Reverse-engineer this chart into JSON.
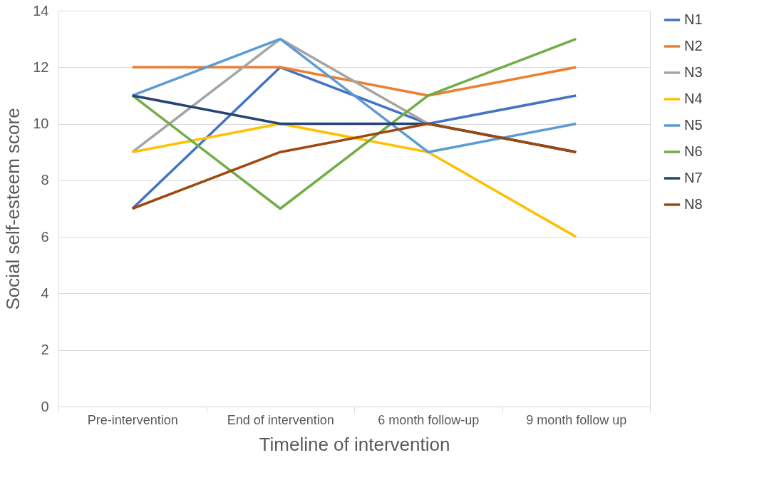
{
  "chart_data": {
    "type": "line",
    "xlabel": "Timeline of intervention",
    "ylabel": "Social self-esteem score",
    "categories": [
      "Pre-intervention",
      "End of intervention",
      "6 month follow-up",
      "9 month follow up"
    ],
    "series": [
      {
        "name": "N1",
        "color": "#4472c4",
        "values": [
          7,
          12,
          10,
          11
        ]
      },
      {
        "name": "N2",
        "color": "#ed7d31",
        "values": [
          12,
          12,
          11,
          12
        ]
      },
      {
        "name": "N3",
        "color": "#a5a5a5",
        "values": [
          9,
          13,
          10,
          9
        ]
      },
      {
        "name": "N4",
        "color": "#ffc000",
        "values": [
          9,
          10,
          9,
          6
        ]
      },
      {
        "name": "N5",
        "color": "#5b9bd5",
        "values": [
          11,
          13,
          9,
          10
        ]
      },
      {
        "name": "N6",
        "color": "#70ad47",
        "values": [
          11,
          7,
          11,
          13
        ]
      },
      {
        "name": "N7",
        "color": "#264478",
        "values": [
          11,
          10,
          10,
          9
        ]
      },
      {
        "name": "N8",
        "color": "#9e480e",
        "values": [
          7,
          9,
          10,
          9
        ]
      }
    ],
    "ylim": [
      0,
      14
    ],
    "yticks": [
      0,
      2,
      4,
      6,
      8,
      10,
      12,
      14
    ],
    "grid": "y",
    "legend": "right",
    "marker": "none",
    "line_style": "solid"
  }
}
